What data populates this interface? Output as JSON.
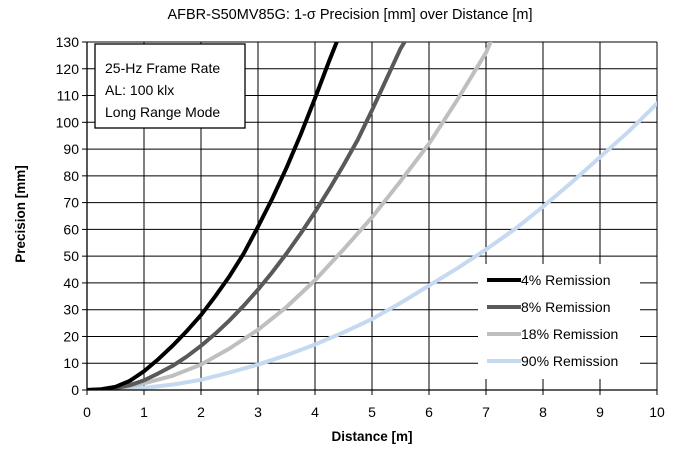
{
  "chart_data": {
    "type": "line",
    "title": "AFBR-S50MV85G: 1-σ Precision [mm] over Distance [m]",
    "xlabel": "Distance [m]",
    "ylabel": "Precision [mm]",
    "xlim": [
      0,
      10
    ],
    "ylim": [
      0,
      130
    ],
    "x_ticks": [
      "0",
      "1",
      "2",
      "3",
      "4",
      "5",
      "6",
      "7",
      "8",
      "9",
      "10"
    ],
    "y_ticks": [
      "0",
      "10",
      "20",
      "30",
      "40",
      "50",
      "60",
      "70",
      "80",
      "90",
      "100",
      "110",
      "120",
      "130"
    ],
    "grid": true,
    "legend_position": "bottom-right",
    "annotations": [
      "25-Hz Frame Rate",
      "AL: 100 klx",
      "Long Range Mode"
    ],
    "series": [
      {
        "name": "4% Remission",
        "color": "#000000",
        "x": [
          0,
          0.25,
          0.5,
          0.75,
          1,
          1.25,
          1.5,
          1.75,
          2,
          2.25,
          2.5,
          2.75,
          3,
          3.25,
          3.5,
          3.75,
          4,
          4.25,
          4.4
        ],
        "y": [
          0,
          0.3,
          1.2,
          3.4,
          7,
          11.5,
          16.5,
          22,
          28,
          35,
          42.5,
          51,
          61,
          71.5,
          83,
          95.5,
          109,
          123,
          131
        ]
      },
      {
        "name": "8% Remission",
        "color": "#595959",
        "x": [
          0,
          0.25,
          0.5,
          0.75,
          1,
          1.25,
          1.5,
          1.75,
          2,
          2.25,
          2.5,
          2.75,
          3,
          3.25,
          3.5,
          3.75,
          4,
          4.25,
          4.5,
          4.75,
          5,
          5.25,
          5.5,
          5.6
        ],
        "y": [
          0,
          0.2,
          0.7,
          1.8,
          3.6,
          6.2,
          9,
          12.5,
          16.5,
          21,
          26,
          31.5,
          37.5,
          44,
          51,
          58.5,
          66.5,
          75,
          84,
          93.5,
          104.5,
          116,
          127.5,
          131
        ]
      },
      {
        "name": "18% Remission",
        "color": "#bfbfbf",
        "x": [
          0,
          0.5,
          1,
          1.5,
          2,
          2.5,
          3,
          3.5,
          4,
          4.5,
          5,
          5.5,
          6,
          6.5,
          7,
          7.1
        ],
        "y": [
          0,
          0.4,
          2.5,
          5.3,
          9.5,
          15.5,
          22.5,
          31,
          41,
          52.5,
          64.5,
          78,
          92,
          108.5,
          126,
          131
        ]
      },
      {
        "name": "90% Remission",
        "color": "#c5d9f1",
        "x": [
          0,
          0.5,
          1,
          1.5,
          2,
          2.5,
          3,
          3.5,
          4,
          4.5,
          5,
          5.5,
          6,
          6.5,
          7,
          7.5,
          8,
          8.5,
          9,
          9.5,
          10
        ],
        "y": [
          0,
          0.2,
          0.8,
          2,
          3.8,
          6.5,
          9.5,
          13,
          17,
          21.5,
          26.5,
          32.5,
          39,
          45.5,
          52.5,
          60,
          68.5,
          77.5,
          87,
          96.5,
          107
        ]
      }
    ]
  }
}
